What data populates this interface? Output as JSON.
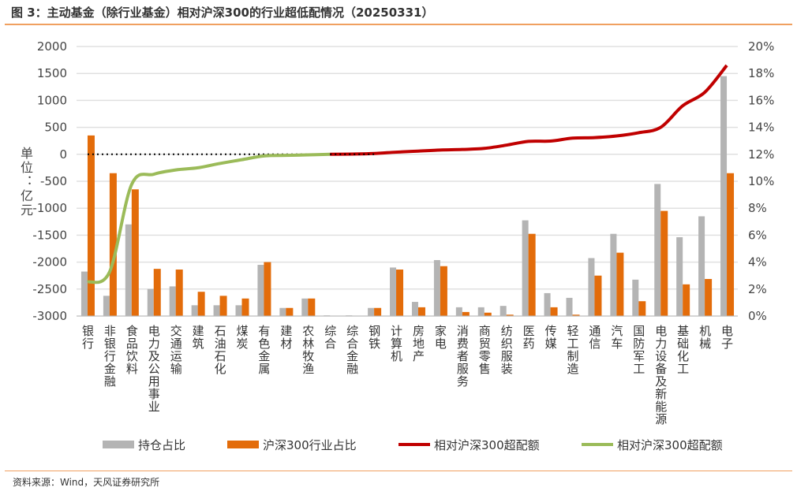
{
  "title": "图 3：主动基金（除行业基金）相对沪深300的行业超低配情况（20250331）",
  "source": "资料来源：Wind，天风证券研究所",
  "chart_data": {
    "type": "bar",
    "title": "图 3：主动基金（除行业基金）相对沪深300的行业超低配情况（20250331）",
    "ylabel": "单位：亿元",
    "ylim": [
      -3000,
      2000
    ],
    "y_ticks": [
      "2000",
      "1500",
      "1000",
      "500",
      "0",
      "-500",
      "-1000",
      "-1500",
      "-2000",
      "-2500",
      "-3000"
    ],
    "y2lim": [
      0,
      20
    ],
    "y2_ticks": [
      "20%",
      "18%",
      "16%",
      "14%",
      "12%",
      "10%",
      "8%",
      "6%",
      "4%",
      "2%",
      "0%"
    ],
    "grid": true,
    "legend_position": "bottom",
    "categories": [
      "银行",
      "非银行金融",
      "食品饮料",
      "电力及公用事业",
      "交通运输",
      "建筑",
      "石油石化",
      "煤炭",
      "有色金属",
      "建材",
      "农林牧渔",
      "综合",
      "综合金融",
      "钢铁",
      "计算机",
      "房地产",
      "家电",
      "消费者服务",
      "商贸零售",
      "纺织服装",
      "医药",
      "传媒",
      "轻工制造",
      "通信",
      "汽车",
      "国防军工",
      "电力设备及新能源",
      "基础化工",
      "机械",
      "电子"
    ],
    "series": [
      {
        "name": "持仓占比",
        "type": "bar",
        "axis": "right",
        "color": "#b4b4b4",
        "values": [
          3.3,
          1.5,
          6.8,
          2.0,
          2.2,
          0.8,
          0.8,
          0.8,
          3.8,
          0.6,
          1.3,
          0.05,
          0.05,
          0.6,
          3.6,
          1.05,
          4.15,
          0.65,
          0.65,
          0.75,
          7.1,
          1.7,
          1.35,
          4.3,
          6.1,
          2.7,
          9.8,
          5.85,
          7.4,
          17.8
        ]
      },
      {
        "name": "沪深300行业占比",
        "type": "bar",
        "axis": "right",
        "color": "#e36c0a",
        "values": [
          13.4,
          10.6,
          9.4,
          3.5,
          3.45,
          1.8,
          1.5,
          1.3,
          4.0,
          0.6,
          1.3,
          0,
          0,
          0.6,
          3.45,
          0.65,
          3.7,
          0.3,
          0.25,
          0.1,
          6.1,
          0.65,
          0.1,
          3.0,
          4.7,
          1.1,
          7.8,
          2.35,
          2.75,
          10.6
        ]
      },
      {
        "name": "相对沪深300超配额",
        "type": "line",
        "axis": "left",
        "color": "#c00000",
        "values": [
          null,
          null,
          null,
          null,
          null,
          null,
          null,
          null,
          null,
          null,
          null,
          0,
          5,
          15,
          40,
          60,
          80,
          90,
          110,
          170,
          240,
          245,
          300,
          310,
          340,
          400,
          500,
          900,
          1150,
          1650
        ]
      },
      {
        "name": "相对沪深300超配额",
        "type": "line",
        "axis": "left",
        "color": "#9bbb59",
        "values": [
          -2370,
          -2180,
          -560,
          -370,
          -290,
          -250,
          -170,
          -100,
          -30,
          -20,
          -10,
          0,
          null,
          null,
          null,
          null,
          null,
          null,
          null,
          null,
          null,
          null,
          null,
          null,
          null,
          null,
          null,
          null,
          null,
          null
        ]
      }
    ]
  }
}
